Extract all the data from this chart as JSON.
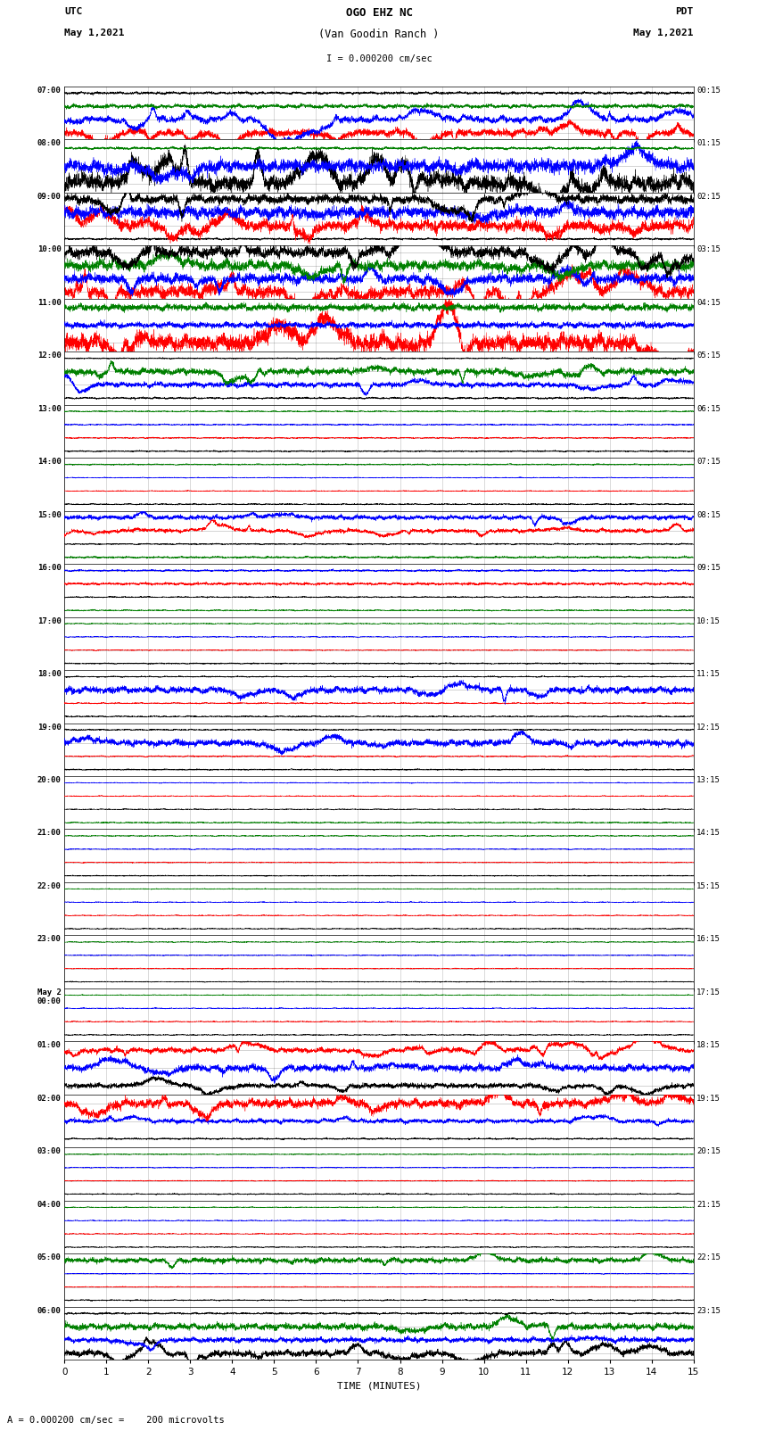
{
  "title_line1": "OGO EHZ NC",
  "title_line2": "(Van Goodin Ranch )",
  "title_scale": "I = 0.000200 cm/sec",
  "label_utc": "UTC",
  "label_pdt": "PDT",
  "date_left": "May 1,2021",
  "date_right": "May 1,2021",
  "xlabel": "TIME (MINUTES)",
  "footer": "A = 0.000200 cm/sec =    200 microvolts",
  "bg_color": "#ffffff",
  "xlim": [
    0,
    15
  ],
  "xticks": [
    0,
    1,
    2,
    3,
    4,
    5,
    6,
    7,
    8,
    9,
    10,
    11,
    12,
    13,
    14,
    15
  ],
  "left_times_utc": [
    "07:00",
    "08:00",
    "09:00",
    "10:00",
    "11:00",
    "12:00",
    "13:00",
    "14:00",
    "15:00",
    "16:00",
    "17:00",
    "18:00",
    "19:00",
    "20:00",
    "21:00",
    "22:00",
    "23:00",
    "May 2\n00:00",
    "01:00",
    "02:00",
    "03:00",
    "04:00",
    "05:00",
    "06:00"
  ],
  "right_times_pdt": [
    "00:15",
    "01:15",
    "02:15",
    "03:15",
    "04:15",
    "05:15",
    "06:15",
    "07:15",
    "08:15",
    "09:15",
    "10:15",
    "11:15",
    "12:15",
    "13:15",
    "14:15",
    "15:15",
    "16:15",
    "17:15",
    "18:15",
    "19:15",
    "20:15",
    "21:15",
    "22:15",
    "23:15"
  ],
  "rows": [
    {
      "traces": [
        {
          "color": "red",
          "amp": 0.3,
          "noise": 0.12,
          "spiky": true,
          "dc": 0.0
        },
        {
          "color": "blue",
          "amp": 0.35,
          "noise": 0.1,
          "spiky": true,
          "dc": 0.0
        },
        {
          "color": "green",
          "amp": 0.18,
          "noise": 0.06,
          "spiky": false,
          "dc": 0.0
        },
        {
          "color": "black",
          "amp": 0.1,
          "noise": 0.04,
          "spiky": false,
          "dc": 0.0
        }
      ]
    },
    {
      "traces": [
        {
          "color": "black",
          "amp": 0.55,
          "noise": 0.2,
          "spiky": true,
          "dc": 0.0
        },
        {
          "color": "blue",
          "amp": 0.35,
          "noise": 0.15,
          "spiky": true,
          "dc": 0.0
        },
        {
          "color": "green",
          "amp": 0.08,
          "noise": 0.03,
          "spiky": false,
          "dc": 0.0
        }
      ]
    },
    {
      "traces": [
        {
          "color": "black",
          "amp": 0.08,
          "noise": 0.03,
          "spiky": false,
          "dc": 0.0
        },
        {
          "color": "red",
          "amp": 0.45,
          "noise": 0.18,
          "spiky": true,
          "dc": 0.0
        },
        {
          "color": "blue",
          "amp": 0.5,
          "noise": 0.18,
          "spiky": true,
          "dc": 0.0
        },
        {
          "color": "black",
          "amp": 0.38,
          "noise": 0.14,
          "spiky": true,
          "dc": 0.0
        }
      ]
    },
    {
      "traces": [
        {
          "color": "red",
          "amp": 0.55,
          "noise": 0.2,
          "spiky": true,
          "dc": 0.0
        },
        {
          "color": "blue",
          "amp": 0.42,
          "noise": 0.15,
          "spiky": true,
          "dc": 0.0
        },
        {
          "color": "green",
          "amp": 0.45,
          "noise": 0.16,
          "spiky": true,
          "dc": 0.0
        },
        {
          "color": "black",
          "amp": 0.48,
          "noise": 0.18,
          "spiky": true,
          "dc": 0.0
        }
      ]
    },
    {
      "traces": [
        {
          "color": "red",
          "amp": 0.52,
          "noise": 0.2,
          "spiky": true,
          "dc": 0.0
        },
        {
          "color": "blue",
          "amp": 0.18,
          "noise": 0.07,
          "spiky": false,
          "dc": 0.0
        },
        {
          "color": "green",
          "amp": 0.2,
          "noise": 0.08,
          "spiky": false,
          "dc": 0.0
        }
      ]
    },
    {
      "traces": [
        {
          "color": "black",
          "amp": 0.08,
          "noise": 0.03,
          "spiky": false,
          "dc": 0.0
        },
        {
          "color": "blue",
          "amp": 0.22,
          "noise": 0.08,
          "spiky": true,
          "dc": 0.0
        },
        {
          "color": "green",
          "amp": 0.28,
          "noise": 0.1,
          "spiky": true,
          "dc": 0.0
        },
        {
          "color": "black",
          "amp": 0.05,
          "noise": 0.02,
          "spiky": false,
          "dc": 0.0
        }
      ]
    },
    {
      "traces": [
        {
          "color": "black",
          "amp": 0.06,
          "noise": 0.02,
          "spiky": false,
          "dc": 0.0
        },
        {
          "color": "red",
          "amp": 0.05,
          "noise": 0.02,
          "spiky": false,
          "dc": 0.0
        },
        {
          "color": "blue",
          "amp": 0.05,
          "noise": 0.02,
          "spiky": false,
          "dc": 0.0
        },
        {
          "color": "green",
          "amp": 0.05,
          "noise": 0.02,
          "spiky": false,
          "dc": 0.0
        }
      ]
    },
    {
      "traces": [
        {
          "color": "black",
          "amp": 0.05,
          "noise": 0.02,
          "spiky": false,
          "dc": 0.0
        },
        {
          "color": "red",
          "amp": 0.04,
          "noise": 0.015,
          "spiky": false,
          "dc": 0.0
        },
        {
          "color": "blue",
          "amp": 0.04,
          "noise": 0.015,
          "spiky": false,
          "dc": 0.0
        },
        {
          "color": "green",
          "amp": 0.06,
          "noise": 0.02,
          "spiky": false,
          "dc": 0.0
        }
      ]
    },
    {
      "traces": [
        {
          "color": "green",
          "amp": 0.08,
          "noise": 0.03,
          "spiky": false,
          "dc": 0.0
        },
        {
          "color": "black",
          "amp": 0.06,
          "noise": 0.02,
          "spiky": false,
          "dc": 0.0
        },
        {
          "color": "red",
          "amp": 0.18,
          "noise": 0.06,
          "spiky": true,
          "dc": 0.0
        },
        {
          "color": "blue",
          "amp": 0.2,
          "noise": 0.07,
          "spiky": true,
          "dc": 0.0
        }
      ]
    },
    {
      "traces": [
        {
          "color": "green",
          "amp": 0.05,
          "noise": 0.02,
          "spiky": false,
          "dc": 0.0
        },
        {
          "color": "black",
          "amp": 0.05,
          "noise": 0.02,
          "spiky": false,
          "dc": 0.0
        },
        {
          "color": "red",
          "amp": 0.1,
          "noise": 0.04,
          "spiky": false,
          "dc": 0.0
        },
        {
          "color": "blue",
          "amp": 0.08,
          "noise": 0.03,
          "spiky": false,
          "dc": 0.0
        }
      ]
    },
    {
      "traces": [
        {
          "color": "black",
          "amp": 0.05,
          "noise": 0.02,
          "spiky": false,
          "dc": 0.0
        },
        {
          "color": "red",
          "amp": 0.04,
          "noise": 0.015,
          "spiky": false,
          "dc": 0.0
        },
        {
          "color": "blue",
          "amp": 0.04,
          "noise": 0.015,
          "spiky": false,
          "dc": 0.0
        },
        {
          "color": "green",
          "amp": 0.04,
          "noise": 0.015,
          "spiky": false,
          "dc": 0.0
        }
      ]
    },
    {
      "traces": [
        {
          "color": "black",
          "amp": 0.05,
          "noise": 0.02,
          "spiky": false,
          "dc": 0.0
        },
        {
          "color": "red",
          "amp": 0.06,
          "noise": 0.02,
          "spiky": false,
          "dc": 0.0
        },
        {
          "color": "blue",
          "amp": 0.3,
          "noise": 0.1,
          "spiky": true,
          "dc": 0.0
        },
        {
          "color": "black",
          "amp": 0.06,
          "noise": 0.02,
          "spiky": false,
          "dc": 0.0
        }
      ]
    },
    {
      "traces": [
        {
          "color": "black",
          "amp": 0.05,
          "noise": 0.02,
          "spiky": false,
          "dc": 0.0
        },
        {
          "color": "red",
          "amp": 0.06,
          "noise": 0.02,
          "spiky": false,
          "dc": 0.0
        },
        {
          "color": "blue",
          "amp": 0.28,
          "noise": 0.1,
          "spiky": true,
          "dc": 0.0
        },
        {
          "color": "black",
          "amp": 0.05,
          "noise": 0.02,
          "spiky": false,
          "dc": 0.0
        }
      ]
    },
    {
      "traces": [
        {
          "color": "green",
          "amp": 0.05,
          "noise": 0.02,
          "spiky": false,
          "dc": 0.0
        },
        {
          "color": "black",
          "amp": 0.04,
          "noise": 0.015,
          "spiky": false,
          "dc": 0.0
        },
        {
          "color": "red",
          "amp": 0.04,
          "noise": 0.015,
          "spiky": false,
          "dc": 0.0
        },
        {
          "color": "blue",
          "amp": 0.04,
          "noise": 0.015,
          "spiky": false,
          "dc": 0.0
        }
      ]
    },
    {
      "traces": [
        {
          "color": "black",
          "amp": 0.04,
          "noise": 0.015,
          "spiky": false,
          "dc": 0.0
        },
        {
          "color": "red",
          "amp": 0.04,
          "noise": 0.015,
          "spiky": false,
          "dc": 0.0
        },
        {
          "color": "blue",
          "amp": 0.04,
          "noise": 0.015,
          "spiky": false,
          "dc": 0.0
        },
        {
          "color": "green",
          "amp": 0.04,
          "noise": 0.015,
          "spiky": false,
          "dc": 0.0
        }
      ]
    },
    {
      "traces": [
        {
          "color": "black",
          "amp": 0.04,
          "noise": 0.015,
          "spiky": false,
          "dc": 0.0
        },
        {
          "color": "red",
          "amp": 0.04,
          "noise": 0.015,
          "spiky": false,
          "dc": 0.0
        },
        {
          "color": "blue",
          "amp": 0.04,
          "noise": 0.015,
          "spiky": false,
          "dc": 0.0
        },
        {
          "color": "green",
          "amp": 0.04,
          "noise": 0.015,
          "spiky": false,
          "dc": 0.0
        }
      ]
    },
    {
      "traces": [
        {
          "color": "black",
          "amp": 0.04,
          "noise": 0.015,
          "spiky": false,
          "dc": 0.0
        },
        {
          "color": "red",
          "amp": 0.04,
          "noise": 0.015,
          "spiky": false,
          "dc": 0.0
        },
        {
          "color": "blue",
          "amp": 0.04,
          "noise": 0.015,
          "spiky": false,
          "dc": 0.0
        },
        {
          "color": "green",
          "amp": 0.04,
          "noise": 0.015,
          "spiky": false,
          "dc": 0.0
        }
      ]
    },
    {
      "traces": [
        {
          "color": "black",
          "amp": 0.04,
          "noise": 0.015,
          "spiky": false,
          "dc": 0.0
        },
        {
          "color": "red",
          "amp": 0.04,
          "noise": 0.015,
          "spiky": false,
          "dc": 0.0
        },
        {
          "color": "blue",
          "amp": 0.04,
          "noise": 0.015,
          "spiky": false,
          "dc": 0.0
        },
        {
          "color": "green",
          "amp": 0.04,
          "noise": 0.015,
          "spiky": false,
          "dc": 0.0
        }
      ]
    },
    {
      "traces": [
        {
          "color": "black",
          "amp": 0.15,
          "noise": 0.06,
          "spiky": true,
          "dc": 0.0
        },
        {
          "color": "blue",
          "amp": 0.22,
          "noise": 0.08,
          "spiky": true,
          "dc": 0.0
        },
        {
          "color": "red",
          "amp": 0.18,
          "noise": 0.06,
          "spiky": true,
          "dc": 0.0
        }
      ]
    },
    {
      "traces": [
        {
          "color": "black",
          "amp": 0.05,
          "noise": 0.02,
          "spiky": false,
          "dc": 0.0
        },
        {
          "color": "blue",
          "amp": 0.15,
          "noise": 0.05,
          "spiky": true,
          "dc": 0.0
        },
        {
          "color": "red",
          "amp": 0.3,
          "noise": 0.1,
          "spiky": true,
          "dc": 0.0
        }
      ]
    },
    {
      "traces": [
        {
          "color": "black",
          "amp": 0.05,
          "noise": 0.02,
          "spiky": false,
          "dc": 0.0
        },
        {
          "color": "red",
          "amp": 0.04,
          "noise": 0.015,
          "spiky": false,
          "dc": 0.0
        },
        {
          "color": "blue",
          "amp": 0.04,
          "noise": 0.015,
          "spiky": false,
          "dc": 0.0
        },
        {
          "color": "green",
          "amp": 0.04,
          "noise": 0.015,
          "spiky": false,
          "dc": 0.0
        }
      ]
    },
    {
      "traces": [
        {
          "color": "black",
          "amp": 0.04,
          "noise": 0.015,
          "spiky": false,
          "dc": 0.0
        },
        {
          "color": "red",
          "amp": 0.04,
          "noise": 0.015,
          "spiky": false,
          "dc": 0.0
        },
        {
          "color": "blue",
          "amp": 0.04,
          "noise": 0.015,
          "spiky": false,
          "dc": 0.0
        },
        {
          "color": "green",
          "amp": 0.04,
          "noise": 0.015,
          "spiky": false,
          "dc": 0.0
        }
      ]
    },
    {
      "traces": [
        {
          "color": "black",
          "amp": 0.05,
          "noise": 0.02,
          "spiky": false,
          "dc": 0.0
        },
        {
          "color": "red",
          "amp": 0.04,
          "noise": 0.015,
          "spiky": false,
          "dc": 0.0
        },
        {
          "color": "blue",
          "amp": 0.04,
          "noise": 0.015,
          "spiky": false,
          "dc": 0.0
        },
        {
          "color": "green",
          "amp": 0.22,
          "noise": 0.08,
          "spiky": true,
          "dc": 0.0
        }
      ]
    },
    {
      "traces": [
        {
          "color": "black",
          "amp": 0.28,
          "noise": 0.1,
          "spiky": true,
          "dc": 0.0
        },
        {
          "color": "blue",
          "amp": 0.22,
          "noise": 0.08,
          "spiky": true,
          "dc": 0.0
        },
        {
          "color": "green",
          "amp": 0.3,
          "noise": 0.1,
          "spiky": true,
          "dc": 0.0
        },
        {
          "color": "black",
          "amp": 0.08,
          "noise": 0.03,
          "spiky": false,
          "dc": 0.0
        }
      ]
    }
  ]
}
